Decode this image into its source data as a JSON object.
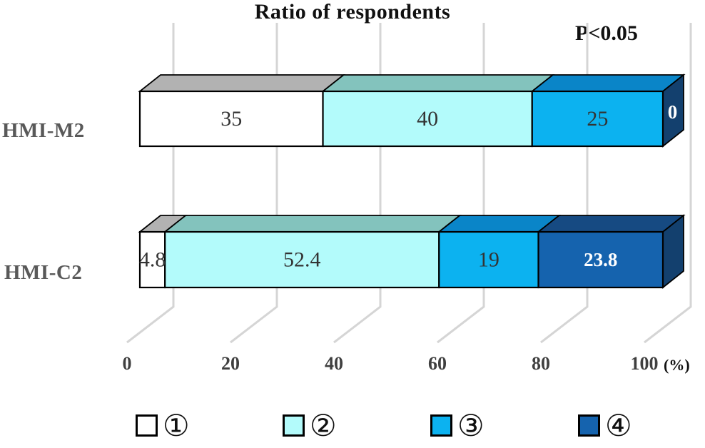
{
  "chart_data": {
    "type": "bar",
    "orientation": "horizontal-stacked-3d",
    "title": "Ratio of respondents",
    "annotation": "P<0.05",
    "unit": "(%)",
    "categories": [
      "HMI-M2",
      "HMI-C2"
    ],
    "series": [
      {
        "name": "①",
        "values": [
          35,
          4.8
        ],
        "color": "#ffffff",
        "top_color": "#b2b2b2",
        "side_color": "#8c8c8c",
        "value_color": "#333333"
      },
      {
        "name": "②",
        "values": [
          40,
          52.4
        ],
        "color": "#b3fbfb",
        "top_color": "#83c3bd",
        "side_color": "#5fa8a2",
        "value_color": "#333333"
      },
      {
        "name": "③",
        "values": [
          25,
          19
        ],
        "color": "#0cb2f0",
        "top_color": "#0a85c8",
        "side_color": "#0a6aa0",
        "value_color": "#333333"
      },
      {
        "name": "④",
        "values": [
          0,
          23.8
        ],
        "color": "#1563ae",
        "top_color": "#164a82",
        "side_color": "#13406e",
        "value_color": "#ffffff"
      }
    ],
    "xticks": [
      0,
      20,
      40,
      60,
      80,
      100
    ],
    "xlim": [
      0,
      100
    ],
    "grid": true,
    "legend_position": "bottom"
  }
}
